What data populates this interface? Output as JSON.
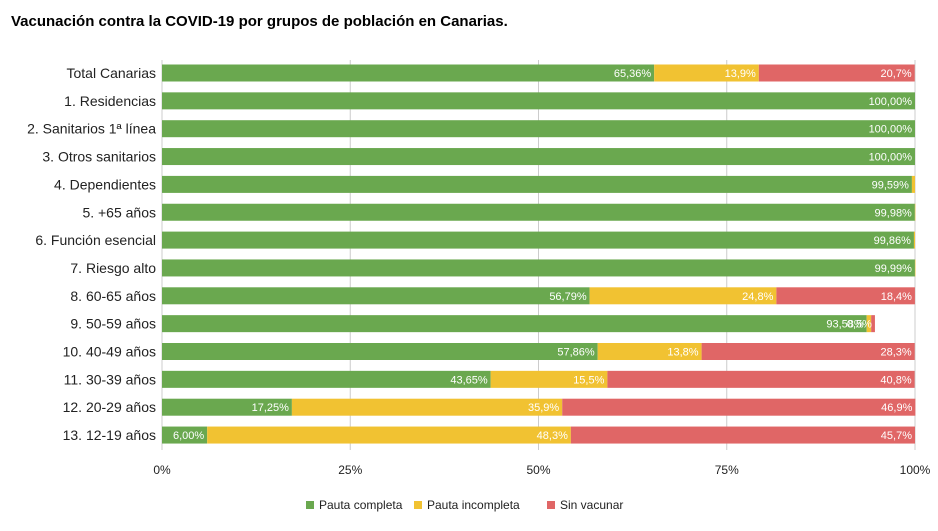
{
  "page_title": "Vacunación contra la COVID-19 por grupos de población en Canarias.",
  "chart_data": {
    "type": "bar",
    "orientation": "horizontal",
    "stacked": "percent",
    "title": "Vacunación contra la COVID-19 por grupos de población en Canarias.",
    "categories": [
      "Total Canarias",
      "1. Residencias",
      "2. Sanitarios 1ª línea",
      "3. Otros sanitarios",
      "4. Dependientes",
      "5. +65 años",
      "6. Función esencial",
      "7. Riesgo alto",
      "8. 60-65 años",
      "9. 50-59 años",
      "10. 40-49 años",
      "11. 30-39 años",
      "12. 20-29 años",
      "13. 12-19 años"
    ],
    "series": [
      {
        "name": "Pauta completa",
        "color": "#6aa84f",
        "values": [
          65.36,
          100,
          100,
          100,
          99.59,
          99.98,
          99.86,
          99.99,
          56.79,
          93.58,
          57.86,
          43.65,
          17.25,
          6.0
        ],
        "labels": [
          "65,36%",
          "100,00%",
          "100,00%",
          "100,00%",
          "99,59%",
          "99,98%",
          "99,86%",
          "99,99%",
          "56,79%",
          "93,58%",
          "57,86%",
          "43,65%",
          "17,25%",
          "6,00%"
        ]
      },
      {
        "name": "Pauta incompleta",
        "color": "#f1c232",
        "values": [
          13.9,
          0,
          0,
          0,
          0.41,
          0.02,
          0.14,
          0.01,
          24.8,
          0.6,
          13.8,
          15.5,
          35.9,
          48.3
        ],
        "labels": [
          "13,9%",
          "",
          "",
          "",
          "",
          "",
          "",
          "",
          "24,8%",
          "",
          "13,8%",
          "15,5%",
          "35,9%",
          "48,3%"
        ]
      },
      {
        "name": "Sin vacunar",
        "color": "#e06666",
        "values": [
          20.7,
          0,
          0,
          0,
          0,
          0,
          0,
          0,
          18.4,
          0.5,
          28.3,
          40.8,
          46.9,
          45.7
        ],
        "labels": [
          "20,7%",
          "",
          "",
          "",
          "",
          "",
          "",
          "",
          "18,4%",
          "0,5%",
          "28,3%",
          "40,8%",
          "46,9%",
          "45,7%"
        ]
      }
    ],
    "x_ticks": [
      "0%",
      "25%",
      "50%",
      "75%",
      "100%"
    ],
    "xlim": [
      0,
      100
    ],
    "grid": true,
    "legend_position": "bottom"
  }
}
